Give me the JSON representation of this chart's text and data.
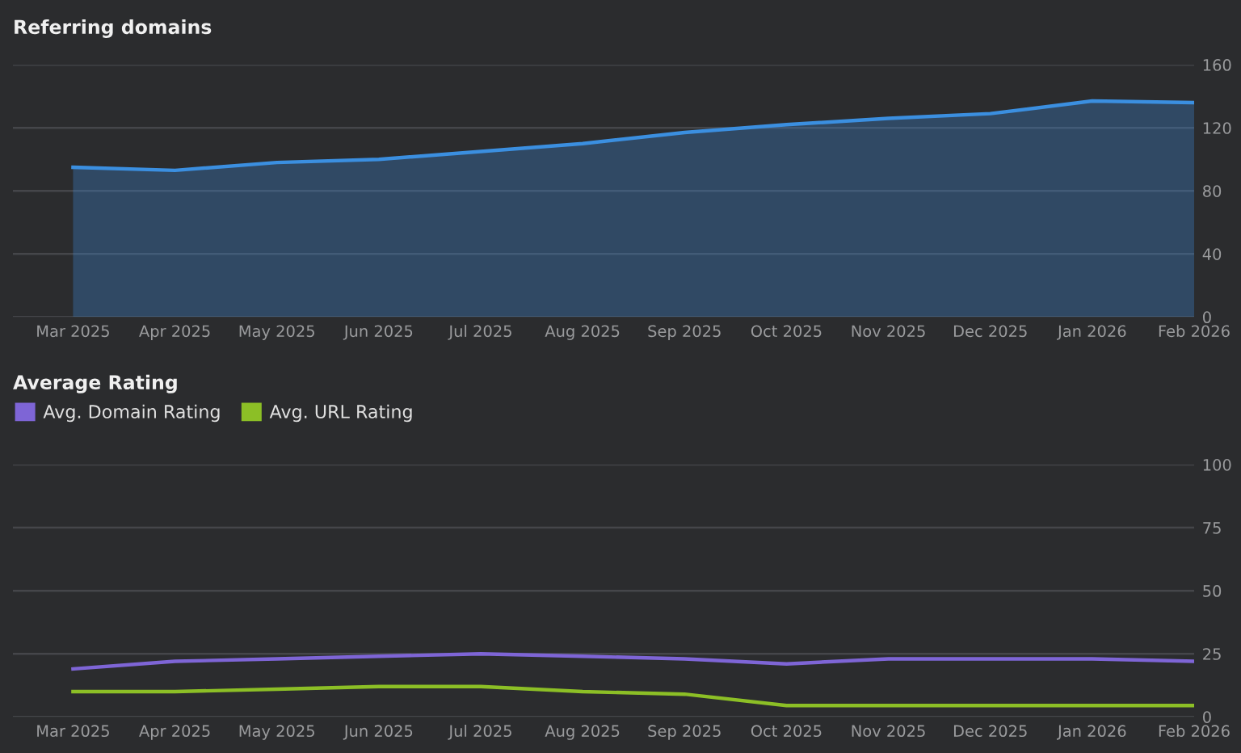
{
  "chart_data": [
    {
      "type": "area",
      "title": "Referring domains",
      "categories": [
        "Mar 2025",
        "Apr 2025",
        "May 2025",
        "Jun 2025",
        "Jul 2025",
        "Aug 2025",
        "Sep 2025",
        "Oct 2025",
        "Nov 2025",
        "Dec 2025",
        "Jan 2026",
        "Feb 2026"
      ],
      "series": [
        {
          "color": "#3b8fe0",
          "values": [
            95,
            93,
            98,
            100,
            105,
            110,
            117,
            122,
            126,
            129,
            137,
            136
          ]
        }
      ],
      "ylim": [
        0,
        160
      ],
      "yticks": [
        0,
        40,
        80,
        120,
        160
      ],
      "grid": "y",
      "legend": false
    },
    {
      "type": "line",
      "title": "Average Rating",
      "categories": [
        "Mar 2025",
        "Apr 2025",
        "May 2025",
        "Jun 2025",
        "Jul 2025",
        "Aug 2025",
        "Sep 2025",
        "Oct 2025",
        "Nov 2025",
        "Dec 2025",
        "Jan 2026",
        "Feb 2026"
      ],
      "series": [
        {
          "name": "Avg. Domain Rating",
          "color": "#7e65d6",
          "values": [
            19,
            22,
            23,
            24,
            25,
            24,
            23,
            21,
            23,
            23,
            23,
            22
          ]
        },
        {
          "name": "Avg. URL Rating",
          "color": "#8cbf26",
          "values": [
            10,
            10,
            11,
            12,
            12,
            10,
            9,
            4.5,
            4.5,
            4.5,
            4.5,
            4.5
          ]
        }
      ],
      "ylim": [
        0,
        100
      ],
      "yticks": [
        0,
        25,
        50,
        75,
        100
      ],
      "grid": "y",
      "legend": "top left"
    }
  ]
}
